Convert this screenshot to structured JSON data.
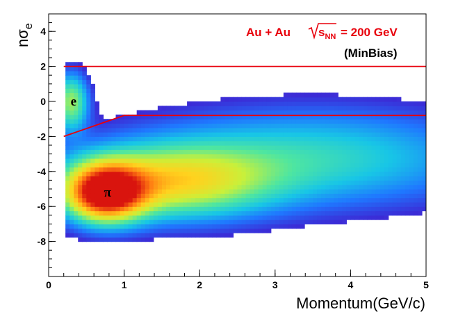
{
  "chart_data": {
    "type": "heatmap",
    "xlabel": "Momentum(GeV/c)",
    "ylabel_main": "nσ",
    "ylabel_sub": "e",
    "xlim": [
      0,
      5
    ],
    "ylim": [
      -10,
      5
    ],
    "x_ticks": [
      "0",
      "1",
      "2",
      "3",
      "4",
      "5"
    ],
    "y_ticks": [
      "-8",
      "-6",
      "-4",
      "-2",
      "0",
      "2",
      "4"
    ],
    "annotations": {
      "system": "Au + Au",
      "sqrt_s_label": "s",
      "sqrt_s_sub": "NN",
      "energy": "= 200 GeV",
      "trigger": "(MinBias)"
    },
    "regions": [
      {
        "label": "e",
        "x": 0.33,
        "y": 0.0
      },
      {
        "label": "π",
        "x": 0.78,
        "y": -5.2
      }
    ],
    "cut_lines": [
      {
        "name": "upper cut",
        "points": [
          [
            0.2,
            2.0
          ],
          [
            5.0,
            2.0
          ]
        ]
      },
      {
        "name": "lower cut",
        "points": [
          [
            0.2,
            -2.0
          ],
          [
            1.0,
            -0.8
          ],
          [
            5.0,
            -0.8
          ]
        ]
      }
    ],
    "density_blobs": [
      {
        "label": "pion band",
        "x": 0.75,
        "y": -5.2,
        "sx": 0.35,
        "sy": 1.1,
        "amp": 1.0
      },
      {
        "label": "pion tail",
        "x": 1.6,
        "y": -4.6,
        "sx": 0.9,
        "sy": 1.4,
        "amp": 0.55
      },
      {
        "label": "high-p band",
        "x": 3.5,
        "y": -3.2,
        "sx": 1.6,
        "sy": 1.9,
        "amp": 0.3
      },
      {
        "label": "electron band",
        "x": 0.3,
        "y": 0.0,
        "sx": 0.15,
        "sy": 1.1,
        "amp": 0.45
      }
    ],
    "grid": false,
    "colormap": [
      "#ffffff",
      "#3b2bd6",
      "#1f78ff",
      "#18c6e6",
      "#4fe6a0",
      "#c9f03a",
      "#ffd21e",
      "#ff7a12",
      "#d9140e"
    ],
    "line_color": "#e8000b"
  }
}
